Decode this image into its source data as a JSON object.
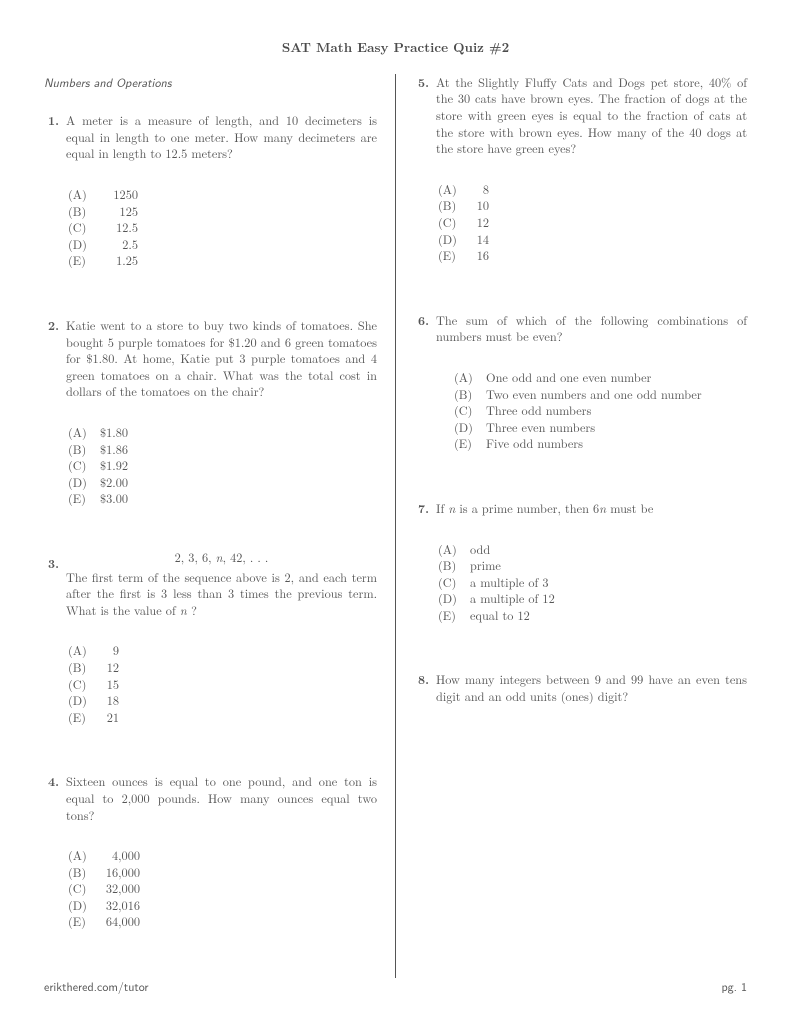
{
  "title": "SAT Math Easy Practice Quiz #2",
  "sectionHeader": "Numbers and Operations",
  "left": [
    {
      "num": "1.",
      "text": "A meter is a measure of length, and 10 decimeters is equal in length to one meter. How many decimeters are equal in length to 12.5 meters?",
      "choices": [
        {
          "l": "(A)",
          "v": "1250"
        },
        {
          "l": "(B)",
          "v": "125"
        },
        {
          "l": "(C)",
          "v": "12.5"
        },
        {
          "l": "(D)",
          "v": "2.5"
        },
        {
          "l": "(E)",
          "v": "1.25"
        }
      ],
      "ralign": true,
      "valw": "38px"
    },
    {
      "num": "2.",
      "text": "Katie went to a store to buy two kinds of tomatoes. She bought 5 purple tomatoes for $1.20 and 6 green tomatoes for $1.80. At home, Katie put 3 purple tomatoes and 4 green tomatoes on a chair. What was the total cost in dollars of the tomatoes on the chair?",
      "choices": [
        {
          "l": "(A)",
          "v": "$1.80"
        },
        {
          "l": "(B)",
          "v": "$1.86"
        },
        {
          "l": "(C)",
          "v": "$1.92"
        },
        {
          "l": "(D)",
          "v": "$2.00"
        },
        {
          "l": "(E)",
          "v": "$3.00"
        }
      ]
    },
    {
      "num": "3.",
      "pre": "2, 3, 6, <span class=\"ital\">n</span>, 42, . . .",
      "text": "The first term of the sequence above is 2, and each term after the first is 3 less than 3 times the previous term. What is the value of <span class=\"ital\">n </span>?",
      "choices": [
        {
          "l": "(A)",
          "v": "9"
        },
        {
          "l": "(B)",
          "v": "12"
        },
        {
          "l": "(C)",
          "v": "15"
        },
        {
          "l": "(D)",
          "v": "18"
        },
        {
          "l": "(E)",
          "v": "21"
        }
      ],
      "ralign": true,
      "valw": "19px"
    },
    {
      "num": "4.",
      "text": "Sixteen ounces is equal to one pound, and one ton is equal to 2,000 pounds. How many ounces equal two tons?",
      "choices": [
        {
          "l": "(A)",
          "v": "4,000"
        },
        {
          "l": "(B)",
          "v": "16,000"
        },
        {
          "l": "(C)",
          "v": "32,000"
        },
        {
          "l": "(D)",
          "v": "32,016"
        },
        {
          "l": "(E)",
          "v": "64,000"
        }
      ],
      "ralign": true,
      "valw": "40px"
    }
  ],
  "right": [
    {
      "num": "5.",
      "text": "At the Slightly Fluffy Cats and Dogs pet store, 40% of the 30 cats have brown eyes. The fraction of dogs at the store with green eyes is equal to the fraction of cats at the store with brown eyes. How many of the 40 dogs at the store have green eyes?",
      "choices": [
        {
          "l": "(A)",
          "v": "8"
        },
        {
          "l": "(B)",
          "v": "10"
        },
        {
          "l": "(C)",
          "v": "12"
        },
        {
          "l": "(D)",
          "v": "14"
        },
        {
          "l": "(E)",
          "v": "16"
        }
      ],
      "ralign": true,
      "valw": "19px"
    },
    {
      "num": "6.",
      "text": "The sum of which of the following combinations of numbers must be even?",
      "choices": [
        {
          "l": "(A)",
          "v": "One odd and one even number"
        },
        {
          "l": "(B)",
          "v": "Two even numbers and one odd number"
        },
        {
          "l": "(C)",
          "v": "Three odd numbers"
        },
        {
          "l": "(D)",
          "v": "Three even numbers"
        },
        {
          "l": "(E)",
          "v": "Five odd numbers"
        }
      ],
      "indent": true
    },
    {
      "num": "7.",
      "text": "If <span class=\"ital\">n</span> is a prime number, then 6<span class=\"ital\">n</span> must be",
      "choices": [
        {
          "l": "(A)",
          "v": "odd"
        },
        {
          "l": "(B)",
          "v": "prime"
        },
        {
          "l": "(C)",
          "v": "a multiple of 3"
        },
        {
          "l": "(D)",
          "v": "a multiple of 12"
        },
        {
          "l": "(E)",
          "v": "equal to 12"
        }
      ]
    },
    {
      "num": "8.",
      "text": "How many integers between 9 and 99 have an even tens digit and an odd units (ones) digit?"
    }
  ],
  "footerLeft": "erikthered.com/tutor",
  "footerRight": "pg. 1"
}
